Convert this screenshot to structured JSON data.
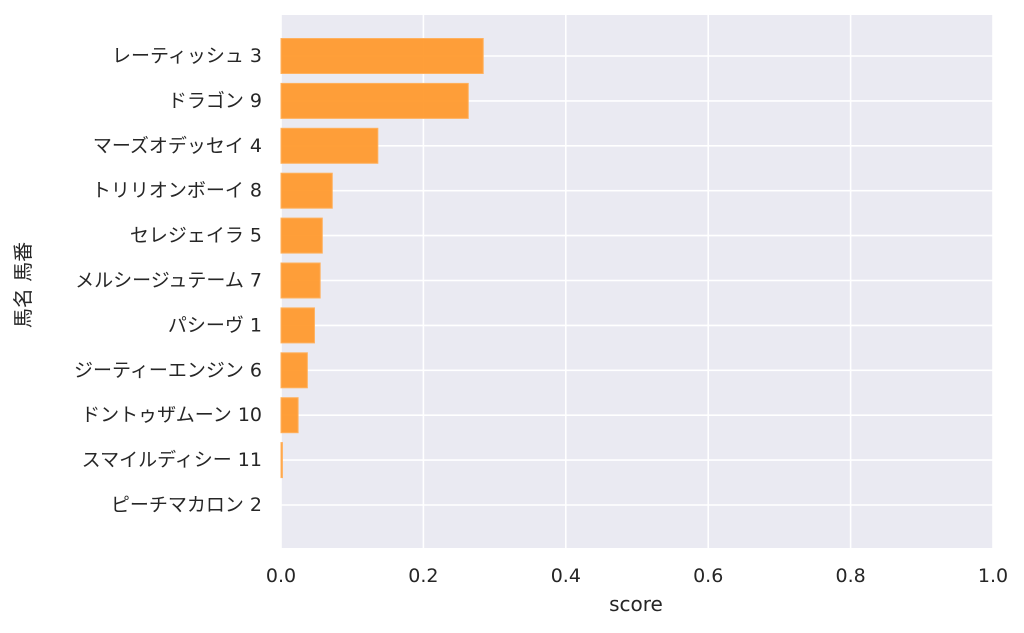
{
  "chart_data": {
    "type": "bar",
    "orientation": "horizontal",
    "categories": [
      "レーティッシュ 3",
      "ドラゴン 9",
      "マーズオデッセイ 4",
      "トリリオンボーイ 8",
      "セレジェイラ 5",
      "メルシージュテーム 7",
      "パシーヴ 1",
      "ジーティーエンジン 6",
      "ドントゥザムーン 10",
      "スマイルディシー 11",
      "ピーチマカロン 2"
    ],
    "values": [
      0.284,
      0.263,
      0.136,
      0.072,
      0.058,
      0.055,
      0.047,
      0.037,
      0.024,
      0.002,
      0.0
    ],
    "xlabel": "score",
    "ylabel": "馬名 馬番",
    "xlim": [
      0.0,
      1.0
    ],
    "xticks": [
      "0.0",
      "0.2",
      "0.4",
      "0.6",
      "0.8",
      "1.0"
    ],
    "grid": true,
    "colors": {
      "bar": "#ff9a2e",
      "bar_edge": "#ffb15e",
      "background": "#eaeaf2",
      "grid": "#ffffff"
    }
  }
}
